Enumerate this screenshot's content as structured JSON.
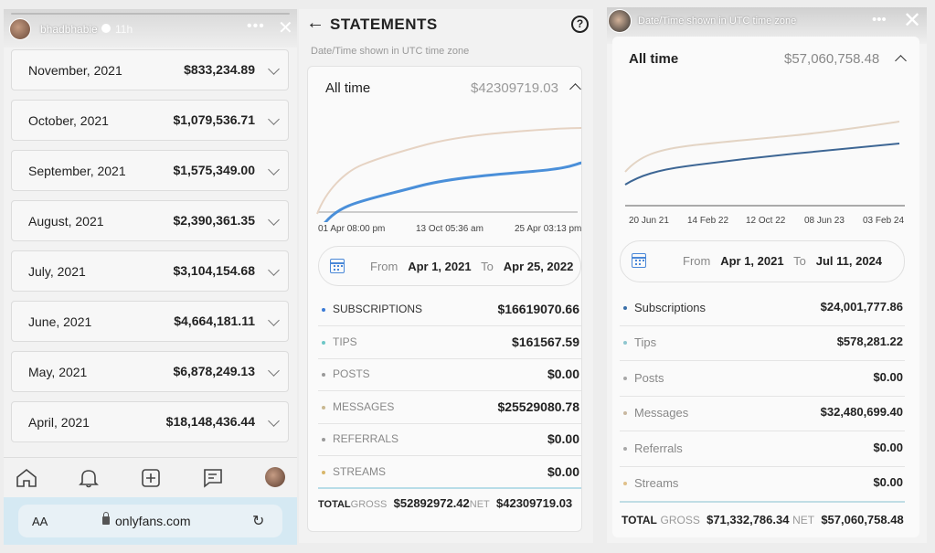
{
  "panel1": {
    "username": "bhadbhabie",
    "age": "11h",
    "months": [
      {
        "month": "November, 2021",
        "amount": "$833,234.89"
      },
      {
        "month": "October, 2021",
        "amount": "$1,079,536.71"
      },
      {
        "month": "September, 2021",
        "amount": "$1,575,349.00"
      },
      {
        "month": "August, 2021",
        "amount": "$2,390,361.35"
      },
      {
        "month": "July, 2021",
        "amount": "$3,104,154.68"
      },
      {
        "month": "June, 2021",
        "amount": "$4,664,181.11"
      },
      {
        "month": "May, 2021",
        "amount": "$6,878,249.13"
      },
      {
        "month": "April, 2021",
        "amount": "$18,148,436.44"
      }
    ],
    "browser": {
      "text_size": "AA",
      "url": "onlyfans.com"
    }
  },
  "panel2": {
    "title": "STATEMENTS",
    "timezone_note": "Date/Time shown in UTC time zone",
    "period": "All time",
    "period_total": "$42309719.03",
    "x_ticks": [
      "01 Apr 08:00 pm",
      "13 Oct 05:36 am",
      "25 Apr 03:13 pm"
    ],
    "from_label": "From",
    "from_date": "Apr 1, 2021",
    "to_label": "To",
    "to_date": "Apr 25, 2022",
    "rows": [
      {
        "name": "SUBSCRIPTIONS",
        "amount": "$16619070.66",
        "color": "#3b7bd6"
      },
      {
        "name": "TIPS",
        "amount": "$161567.59",
        "color": "#6ec6c6"
      },
      {
        "name": "POSTS",
        "amount": "$0.00",
        "color": "#9a9a9a"
      },
      {
        "name": "MESSAGES",
        "amount": "$25529080.78",
        "color": "#c9b891"
      },
      {
        "name": "REFERRALS",
        "amount": "$0.00",
        "color": "#9a9a9a"
      },
      {
        "name": "STREAMS",
        "amount": "$0.00",
        "color": "#d8b66a"
      }
    ],
    "total_label": "TOTAL",
    "gross_label": "GROSS",
    "gross": "$52892972.42",
    "net_label": "NET",
    "net": "$42309719.03"
  },
  "panel3": {
    "top_text": "Date/Time shown in UTC time zone",
    "period": "All time",
    "period_total": "$57,060,758.48",
    "x_ticks": [
      "20 Jun 21",
      "14 Feb 22",
      "12 Oct 22",
      "08 Jun 23",
      "03 Feb 24"
    ],
    "from_label": "From",
    "from_date": "Apr 1, 2021",
    "to_label": "To",
    "to_date": "Jul 11, 2024",
    "rows": [
      {
        "name": "Subscriptions",
        "amount": "$24,001,777.86",
        "color": "#3a6fa8"
      },
      {
        "name": "Tips",
        "amount": "$578,281.22",
        "color": "#8fc6cf"
      },
      {
        "name": "Posts",
        "amount": "$0.00",
        "color": "#a8a8a8"
      },
      {
        "name": "Messages",
        "amount": "$32,480,699.40",
        "color": "#c8b8a0"
      },
      {
        "name": "Referrals",
        "amount": "$0.00",
        "color": "#a8a8a8"
      },
      {
        "name": "Streams",
        "amount": "$0.00",
        "color": "#e0c08a"
      }
    ],
    "total_label": "TOTAL",
    "gross_label": "GROSS",
    "gross": "$71,332,786.34",
    "net_label": "NET",
    "net": "$57,060,758.48"
  }
}
